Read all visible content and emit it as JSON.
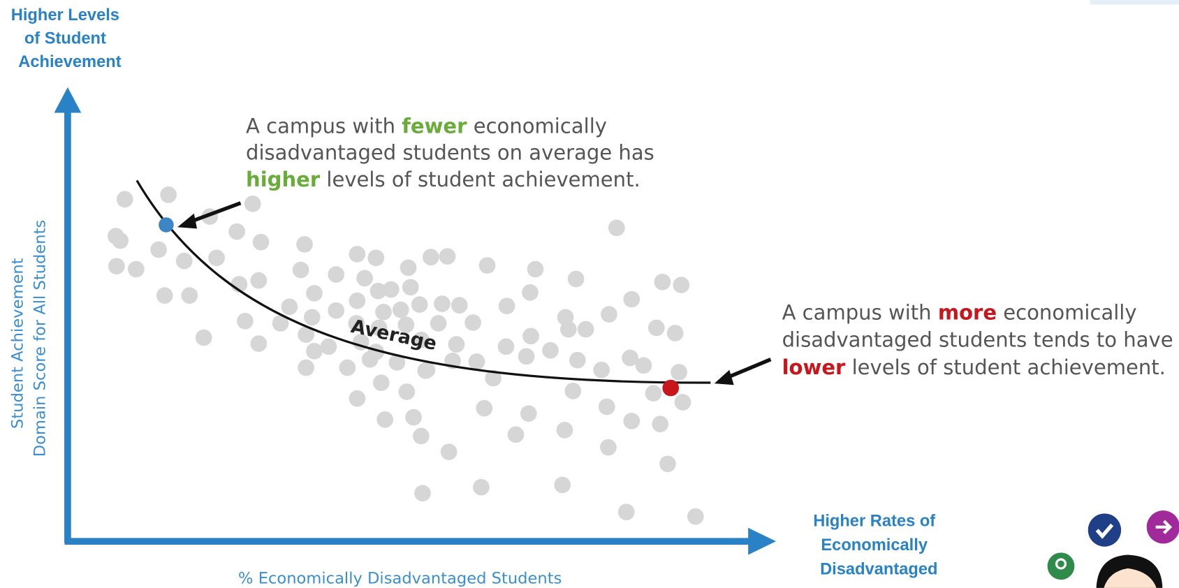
{
  "top_label": {
    "lines": [
      "Higher Levels",
      "of Student",
      "Achievement"
    ]
  },
  "annotation_fewer": {
    "line1": [
      "A campus with ",
      "fewer",
      " economically"
    ],
    "line2": "disadvantaged students on average has",
    "line3": [
      "higher",
      " levels of student achievement."
    ]
  },
  "annotation_more": {
    "line1": [
      "A campus with ",
      "more",
      " economically"
    ],
    "line2": "disadvantaged students tends to have",
    "line3": [
      "lower",
      " levels of student achievement."
    ]
  },
  "curve_label": "Average",
  "y_axis_label": [
    "Student Achievement",
    "Domain Score for All Students"
  ],
  "x_axis_label": "% Economically Disadvantaged Students",
  "right_label": {
    "lines": [
      "Higher Rates of",
      "Economically",
      "Disadvantaged"
    ]
  }
}
